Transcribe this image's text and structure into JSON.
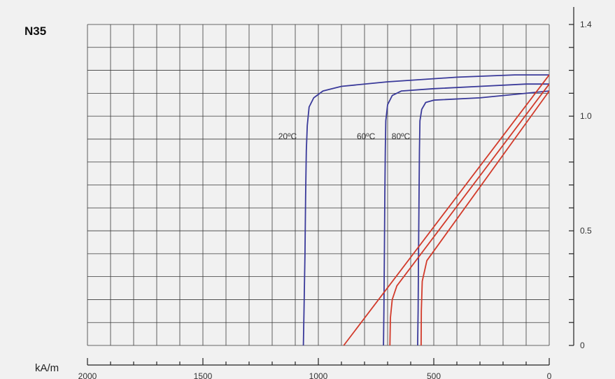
{
  "chart_data": {
    "type": "line",
    "title": "N35",
    "xlabel": "kA/m",
    "ylabel": "",
    "xlim": [
      2000,
      0
    ],
    "ylim": [
      0,
      1.4
    ],
    "x_ticks": [
      "2000",
      "1500",
      "1000",
      "500",
      "0"
    ],
    "y_ticks": [
      "0",
      "0.5",
      "1.0",
      "1.4"
    ],
    "grid": true,
    "colors": {
      "demag": "#3a3a9a",
      "recoil": "#d23a2a",
      "grid": "#3a3a3a",
      "background": "#f1f1f1"
    },
    "series": [
      {
        "name": "20ºC",
        "kind": "demag",
        "points": [
          [
            1065,
            0
          ],
          [
            1062,
            0.15
          ],
          [
            1058,
            0.4
          ],
          [
            1055,
            0.65
          ],
          [
            1052,
            0.85
          ],
          [
            1048,
            0.96
          ],
          [
            1040,
            1.04
          ],
          [
            1020,
            1.08
          ],
          [
            980,
            1.11
          ],
          [
            900,
            1.13
          ],
          [
            700,
            1.15
          ],
          [
            400,
            1.17
          ],
          [
            150,
            1.18
          ],
          [
            0,
            1.18
          ]
        ]
      },
      {
        "name": "60ºC",
        "kind": "demag",
        "points": [
          [
            718,
            0
          ],
          [
            716,
            0.15
          ],
          [
            714,
            0.4
          ],
          [
            712,
            0.65
          ],
          [
            710,
            0.85
          ],
          [
            708,
            0.98
          ],
          [
            700,
            1.05
          ],
          [
            680,
            1.09
          ],
          [
            640,
            1.11
          ],
          [
            500,
            1.12
          ],
          [
            300,
            1.13
          ],
          [
            100,
            1.14
          ],
          [
            0,
            1.14
          ]
        ]
      },
      {
        "name": "80ºC",
        "kind": "demag",
        "points": [
          [
            570,
            0
          ],
          [
            568,
            0.15
          ],
          [
            566,
            0.4
          ],
          [
            564,
            0.65
          ],
          [
            562,
            0.85
          ],
          [
            560,
            0.98
          ],
          [
            552,
            1.03
          ],
          [
            535,
            1.06
          ],
          [
            500,
            1.07
          ],
          [
            300,
            1.08
          ],
          [
            100,
            1.1
          ],
          [
            0,
            1.11
          ]
        ]
      },
      {
        "kind": "recoil",
        "points": [
          [
            890,
            0
          ],
          [
            0,
            1.18
          ]
        ]
      },
      {
        "kind": "recoil",
        "points": [
          [
            690,
            0
          ],
          [
            688,
            0.12
          ],
          [
            680,
            0.2
          ],
          [
            660,
            0.26
          ],
          [
            0,
            1.14
          ]
        ]
      },
      {
        "kind": "recoil",
        "points": [
          [
            555,
            0
          ],
          [
            554,
            0.15
          ],
          [
            550,
            0.28
          ],
          [
            530,
            0.37
          ],
          [
            0,
            1.11
          ]
        ]
      }
    ]
  }
}
